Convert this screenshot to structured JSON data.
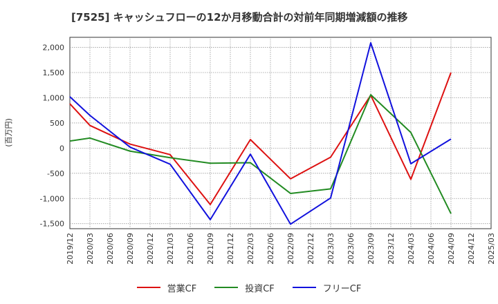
{
  "chart_data": {
    "type": "line",
    "title": "[7525]  キャッシュフローの12か月移動合計の対前年同期増減額の推移",
    "ylabel": "(百万円)",
    "xlabel": "",
    "ylim": [
      -1600,
      2200
    ],
    "yticks": [
      -1500,
      -1000,
      -500,
      0,
      500,
      1000,
      1500,
      2000
    ],
    "ytick_labels": [
      "-1,500",
      "-1,000",
      "-500",
      "0",
      "500",
      "1,000",
      "1,500",
      "2,000"
    ],
    "categories": [
      "2019/12",
      "2020/03",
      "2020/06",
      "2020/09",
      "2020/12",
      "2021/03",
      "2021/06",
      "2021/09",
      "2021/12",
      "2022/03",
      "2022/06",
      "2022/09",
      "2022/12",
      "2023/03",
      "2023/06",
      "2023/09",
      "2023/12",
      "2024/03",
      "2024/06",
      "2024/09",
      "2024/12",
      "2025/03"
    ],
    "grid": true,
    "legend_position": "bottom",
    "series": [
      {
        "name": "営業CF",
        "color": "#dd1111",
        "values": [
          880,
          450,
          null,
          80,
          null,
          -130,
          null,
          -1120,
          null,
          170,
          null,
          -610,
          null,
          -180,
          null,
          1050,
          null,
          -620,
          null,
          1500,
          null,
          null
        ]
      },
      {
        "name": "投資CF",
        "color": "#228b22",
        "values": [
          140,
          200,
          null,
          -60,
          null,
          -190,
          null,
          -300,
          null,
          -290,
          null,
          -900,
          null,
          -810,
          null,
          1060,
          null,
          310,
          null,
          -1300,
          null,
          null
        ]
      },
      {
        "name": "フリーCF",
        "color": "#1111dd",
        "values": [
          1020,
          650,
          null,
          20,
          null,
          -320,
          null,
          -1420,
          null,
          -120,
          null,
          -1510,
          null,
          -990,
          null,
          2090,
          null,
          -310,
          null,
          180,
          null,
          null
        ]
      }
    ]
  }
}
